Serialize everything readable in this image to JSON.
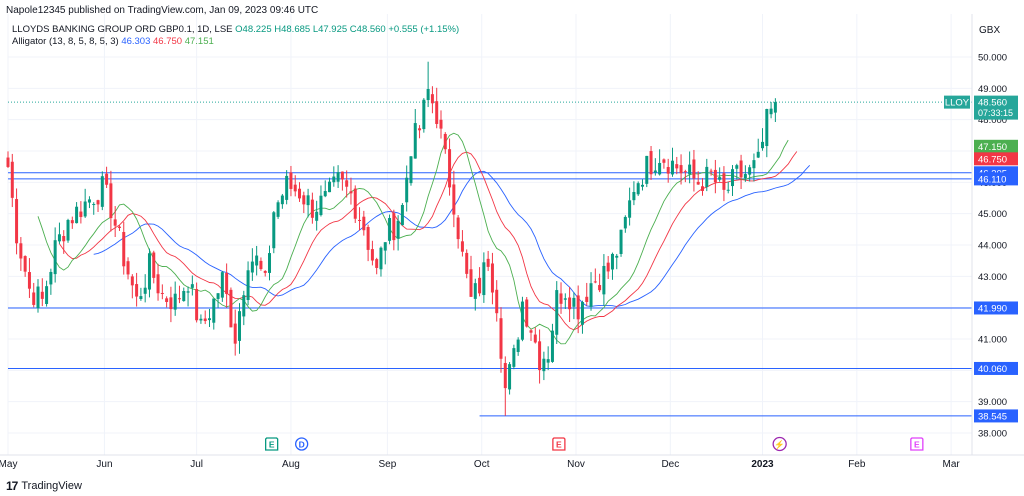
{
  "publisher": "Napole12345 published on TradingView.com, Jan 09, 2023 09:46 UTC",
  "currency": "GBX",
  "branding": "TradingView",
  "legend": {
    "symbol": "LLOYDS BANKING GROUP ORD GBP0.1, 1D, LSE",
    "open": "O48.225",
    "high": "H48.685",
    "low": "L47.925",
    "close": "C48.560",
    "change": "+0.555 (+1.15%)",
    "indicator": "Alligator (13, 8, 5, 8, 5, 3)",
    "jaw": "46.303",
    "teeth": "46.750",
    "lips": "47.151"
  },
  "chart_data": {
    "type": "candlestick",
    "ylim": [
      37.3,
      51.0
    ],
    "y_ticks": [
      "50.000",
      "49.000",
      "48.000",
      "47.000",
      "46.000",
      "45.000",
      "44.000",
      "43.000",
      "42.000",
      "41.000",
      "40.000",
      "39.000",
      "38.000"
    ],
    "x_labels": [
      "May",
      "Jun",
      "Jul",
      "Aug",
      "Sep",
      "Oct",
      "Nov",
      "Dec",
      "2023",
      "Feb",
      "Mar"
    ],
    "x_label_pos": [
      0,
      22.5,
      44,
      66,
      88.5,
      110.5,
      132.5,
      154.5,
      176,
      198,
      220
    ],
    "last_price": {
      "symbol": "LLOY",
      "value": "48.560",
      "countdown": "07:33:15",
      "color": "#26a69a"
    },
    "lines": [
      {
        "value": "46.305",
        "color": "#2962ff",
        "from": 0
      },
      {
        "value": "46.110",
        "color": "#2962ff",
        "from": 0
      },
      {
        "value": "41.990",
        "color": "#2962ff",
        "from": 0
      },
      {
        "value": "40.060",
        "color": "#2962ff",
        "from": 0
      },
      {
        "value": "38.545",
        "color": "#2962ff",
        "from": 110
      }
    ],
    "indicator_tags": [
      {
        "value": "47.150",
        "color": "#4caf50"
      },
      {
        "value": "46.750",
        "color": "#f23645"
      }
    ],
    "events": [
      {
        "label": "E",
        "x": 61.5,
        "color": "#089981"
      },
      {
        "label": "D",
        "x": 68.5,
        "color": "#2962ff"
      },
      {
        "label": "E",
        "x": 128.5,
        "color": "#f23645"
      },
      {
        "label": "⚡",
        "x": 180,
        "color": "#9c27b0"
      },
      {
        "label": "E",
        "x": 212,
        "color": "#e040fb"
      }
    ],
    "anchors": [
      [
        0,
        46.5
      ],
      [
        2,
        44.4
      ],
      [
        5,
        42.6
      ],
      [
        8,
        42.2
      ],
      [
        11,
        43.9
      ],
      [
        14,
        44.8
      ],
      [
        17,
        45.2
      ],
      [
        20,
        45.6
      ],
      [
        22,
        45.8
      ],
      [
        24,
        45.2
      ],
      [
        27,
        43.6
      ],
      [
        30,
        42.2
      ],
      [
        33,
        43.3
      ],
      [
        36,
        42.4
      ],
      [
        39,
        42.2
      ],
      [
        42,
        42.9
      ],
      [
        45,
        41.3
      ],
      [
        48,
        42.2
      ],
      [
        50,
        42.9
      ],
      [
        53,
        41.1
      ],
      [
        56,
        43.6
      ],
      [
        58,
        43.5
      ],
      [
        60,
        42.7
      ],
      [
        62,
        45.1
      ],
      [
        65,
        45.9
      ],
      [
        68,
        45.7
      ],
      [
        71,
        45.2
      ],
      [
        74,
        45.4
      ],
      [
        77,
        46.0
      ],
      [
        80,
        45.6
      ],
      [
        83,
        44.6
      ],
      [
        86,
        43.1
      ],
      [
        88,
        44.3
      ],
      [
        90,
        44.6
      ],
      [
        92,
        45.2
      ],
      [
        94,
        47.2
      ],
      [
        96,
        47.7
      ],
      [
        98,
        48.9
      ],
      [
        100,
        48.2
      ],
      [
        102,
        46.7
      ],
      [
        104,
        45.4
      ],
      [
        106,
        43.6
      ],
      [
        108,
        42.2
      ],
      [
        110,
        42.7
      ],
      [
        112,
        43.6
      ],
      [
        114,
        42.2
      ],
      [
        116,
        39.4
      ],
      [
        118,
        40.4
      ],
      [
        120,
        42.2
      ],
      [
        122,
        41.4
      ],
      [
        124,
        40.4
      ],
      [
        126,
        40.6
      ],
      [
        128,
        42.3
      ],
      [
        130,
        42.6
      ],
      [
        133,
        42.0
      ],
      [
        136,
        42.8
      ],
      [
        140,
        43.2
      ],
      [
        143,
        44.1
      ],
      [
        146,
        45.9
      ],
      [
        149,
        46.5
      ],
      [
        152,
        46.9
      ],
      [
        155,
        46.6
      ],
      [
        158,
        46.3
      ],
      [
        161,
        46.0
      ],
      [
        164,
        46.2
      ],
      [
        167,
        45.6
      ],
      [
        170,
        46.2
      ],
      [
        173,
        46.3
      ],
      [
        175,
        46.6
      ],
      [
        177,
        47.9
      ],
      [
        179,
        48.56
      ]
    ],
    "alligator": {
      "jaw_offset": 8,
      "teeth_offset": 5,
      "lips_offset": 3,
      "jaw_color": "#2962ff",
      "teeth_color": "#f23645",
      "lips_color": "#4caf50"
    },
    "colors": {
      "up": "#089981",
      "down": "#f23645",
      "grid": "#f0f3fa"
    }
  }
}
